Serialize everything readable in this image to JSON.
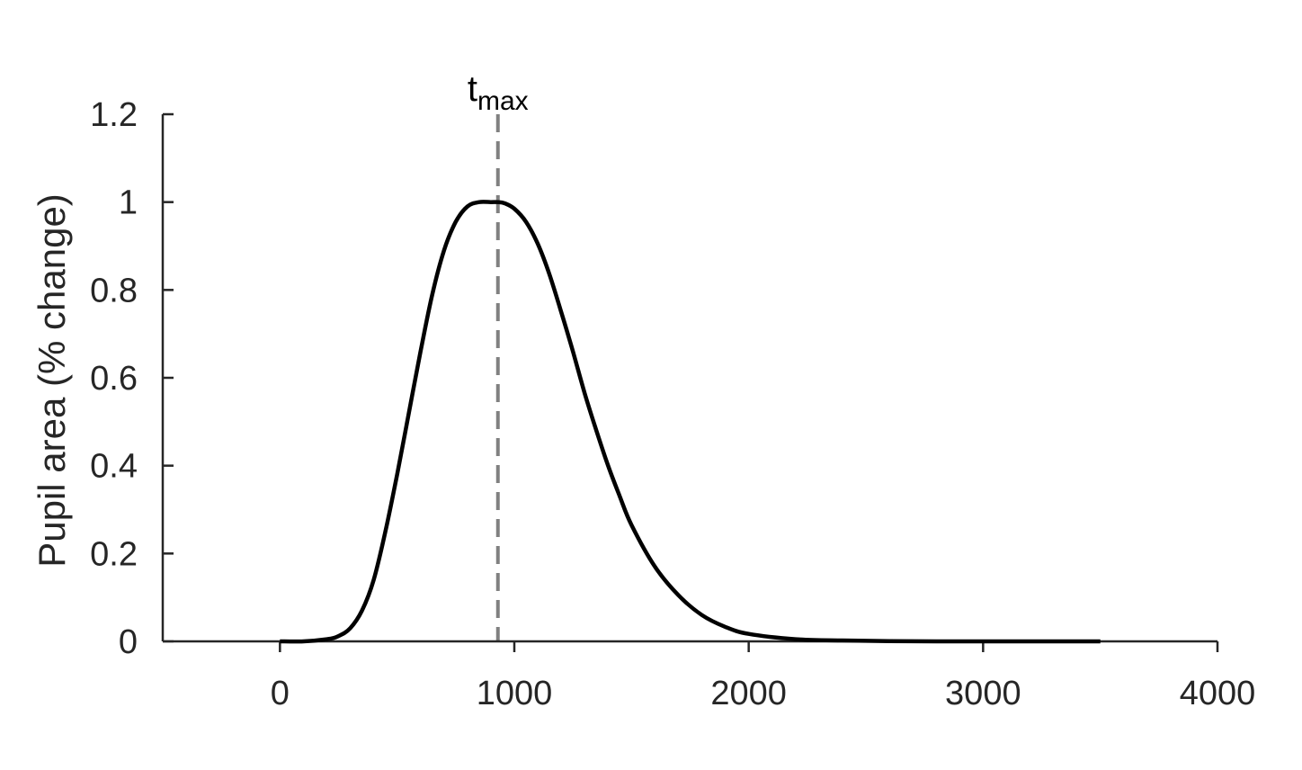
{
  "chart_data": {
    "type": "line",
    "title": "",
    "xlabel": "",
    "ylabel": "Pupil area (% change)",
    "xlim": [
      -500,
      4000
    ],
    "ylim": [
      0,
      1.2
    ],
    "xticks": [
      0,
      1000,
      2000,
      3000,
      4000
    ],
    "yticks": [
      0,
      0.2,
      0.4,
      0.6,
      0.8,
      1,
      1.2
    ],
    "xtick_labels": [
      "0",
      "1000",
      "2000",
      "3000",
      "4000"
    ],
    "ytick_labels": [
      "0",
      "0.2",
      "0.4",
      "0.6",
      "0.8",
      "1",
      "1.2"
    ],
    "grid": false,
    "series": [
      {
        "color": "#000000",
        "x": [
          0,
          100,
          200,
          250,
          300,
          350,
          400,
          450,
          500,
          550,
          600,
          650,
          700,
          750,
          800,
          850,
          900,
          930,
          960,
          1000,
          1050,
          1100,
          1150,
          1200,
          1250,
          1300,
          1350,
          1400,
          1450,
          1500,
          1600,
          1700,
          1800,
          1900,
          2000,
          2200,
          2400,
          2600,
          2800,
          3000,
          3200,
          3500
        ],
        "y": [
          0,
          0.0,
          0.005,
          0.012,
          0.03,
          0.07,
          0.14,
          0.25,
          0.38,
          0.52,
          0.66,
          0.79,
          0.89,
          0.955,
          0.99,
          1.0,
          1.0,
          1.0,
          0.997,
          0.985,
          0.955,
          0.905,
          0.835,
          0.75,
          0.66,
          0.565,
          0.48,
          0.4,
          0.33,
          0.265,
          0.17,
          0.105,
          0.06,
          0.033,
          0.017,
          0.005,
          0.002,
          0.0005,
          0.0,
          0.0,
          0.0,
          0.0
        ]
      }
    ],
    "reference_line": {
      "x": 930,
      "style": "dashed",
      "color": "#808080",
      "label_main": "t",
      "label_sub": "max"
    }
  }
}
